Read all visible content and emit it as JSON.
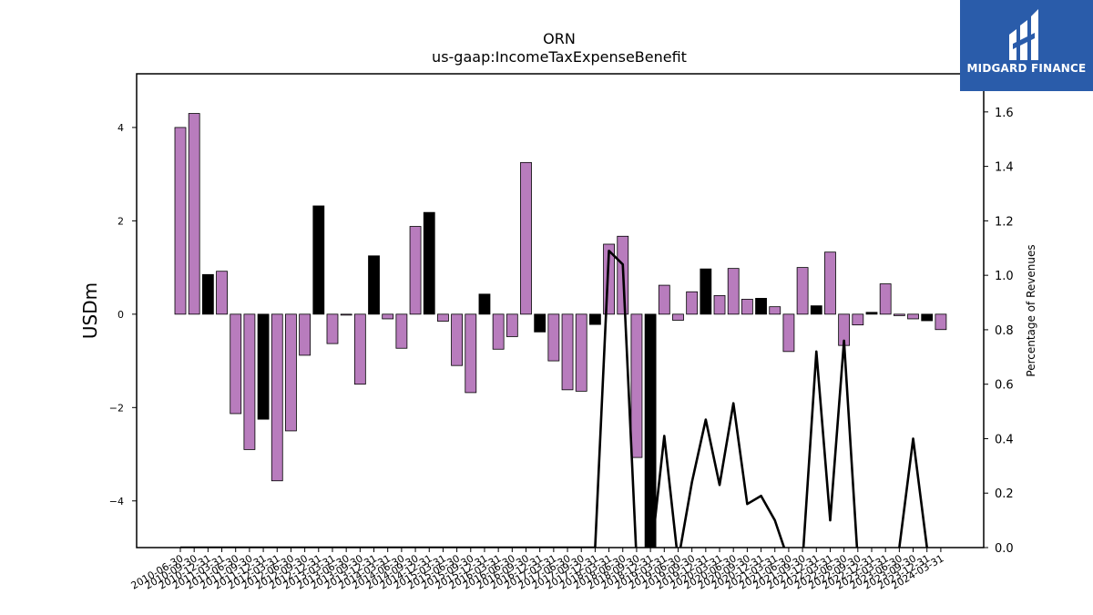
{
  "chart_data": {
    "type": "bar",
    "title": "ORN",
    "subtitle": "us-gaap:IncomeTaxExpenseBenefit",
    "ylabel": "USDm",
    "y2label": "Percentage of Revenues",
    "ylim": [
      -5.0,
      5.15
    ],
    "y2lim": [
      0.0,
      1.74
    ],
    "yticks": [
      -4,
      -2,
      0,
      2,
      4
    ],
    "y2ticks": [
      0.0,
      0.2,
      0.4,
      0.6,
      0.8,
      1.0,
      1.2,
      1.4,
      1.6
    ],
    "colors": {
      "positive_quarter": "#b87cbd",
      "annual": "#000000",
      "line": "#000000"
    },
    "categories": [
      "2010-06-30",
      "2010-09-30",
      "2010-12-31",
      "2011-03-31",
      "2011-06-30",
      "2011-09-30",
      "2011-12-31",
      "2012-03-31",
      "2012-06-30",
      "2012-09-30",
      "2012-12-31",
      "2013-03-31",
      "2013-06-30",
      "2013-09-30",
      "2013-12-31",
      "2014-03-31",
      "2014-06-30",
      "2014-09-30",
      "2014-12-31",
      "2015-03-31",
      "2015-06-30",
      "2015-09-30",
      "2015-12-31",
      "2016-03-31",
      "2016-06-30",
      "2016-09-30",
      "2016-12-31",
      "2017-03-31",
      "2017-06-30",
      "2017-09-30",
      "2017-12-31",
      "2018-03-31",
      "2018-06-30",
      "2018-09-30",
      "2018-12-31",
      "2019-03-31",
      "2019-06-30",
      "2019-09-30",
      "2019-12-31",
      "2020-03-31",
      "2020-06-30",
      "2020-09-30",
      "2020-12-31",
      "2021-03-31",
      "2021-06-30",
      "2021-09-30",
      "2021-12-31",
      "2022-03-31",
      "2022-06-30",
      "2022-09-30",
      "2022-12-31",
      "2023-03-31",
      "2023-06-30",
      "2023-09-30",
      "2023-12-31",
      "2024-03-31"
    ],
    "x_tick_labels": [
      "2010-06-30",
      "2010-09-30",
      "2010-12-31",
      "2011-03-31",
      "2011-06-30",
      "2011-09-30",
      "2011-12-31",
      "2012-03-31",
      "2012-06-30",
      "2012-09-30",
      "2012-12-31",
      "2013-03-31",
      "2013-06-30",
      "2013-09-30",
      "2013-12-31",
      "2014-03-31",
      "2014-06-30",
      "2014-09-30",
      "2014-12-31",
      "2015-03-31",
      "2015-06-30",
      "2015-09-30",
      "2015-12-31",
      "2016-03-31",
      "2016-06-30",
      "2016-09-30",
      "2016-12-31",
      "2017-03-31",
      "2017-06-30",
      "2017-09-30",
      "2017-12-31",
      "2018-03-31",
      "2018-06-30",
      "2018-09-30",
      "2018-12-31",
      "2019-03-31",
      "2019-06-30",
      "2019-09-30",
      "2019-12-31",
      "2020-03-31",
      "2020-06-30",
      "2020-09-30",
      "2020-12-31",
      "2021-03-31",
      "2021-06-30",
      "2021-09-30",
      "2021-12-31",
      "2022-03-31",
      "2022-06-30",
      "2022-09-30",
      "2022-12-31",
      "2023-03-31",
      "2023-06-30",
      "2023-09-30",
      "2023-12-31",
      "2024-03-31"
    ],
    "series": [
      {
        "kind": "bar",
        "values": [
          4.0,
          4.3,
          0.85,
          0.92,
          -2.13,
          -2.9,
          -2.25,
          -3.57,
          -2.5,
          -0.88,
          2.32,
          -0.63,
          -0.02,
          -1.5,
          1.25,
          -0.1,
          -0.73,
          1.88,
          2.18,
          -0.15,
          -1.1,
          -1.68,
          0.43,
          -0.75,
          -0.48,
          3.25,
          -0.38,
          -1.0,
          -1.62,
          -1.65,
          -0.22,
          1.5,
          1.67,
          -3.07,
          -5.0,
          0.62,
          -0.13,
          0.48,
          0.97,
          0.4,
          0.98,
          0.32,
          0.34,
          0.16,
          -0.8,
          1.0,
          0.18,
          1.33,
          -0.67,
          -0.23,
          0.04,
          0.65,
          -0.03,
          -0.1,
          -0.14,
          -0.33
        ],
        "annual": [
          false,
          false,
          true,
          false,
          false,
          false,
          true,
          false,
          false,
          false,
          true,
          false,
          false,
          false,
          true,
          false,
          false,
          false,
          true,
          false,
          false,
          false,
          true,
          false,
          false,
          false,
          true,
          false,
          false,
          false,
          true,
          false,
          false,
          false,
          true,
          false,
          false,
          false,
          true,
          false,
          false,
          false,
          true,
          false,
          false,
          false,
          true,
          false,
          false,
          false,
          true,
          false,
          false,
          false,
          true,
          false
        ]
      },
      {
        "kind": "line",
        "axis": "right",
        "values": [
          0,
          0,
          0,
          0,
          0,
          0,
          0,
          0,
          0,
          0,
          0,
          0,
          0,
          0,
          0,
          0,
          0,
          0,
          0,
          0,
          0,
          0,
          0,
          0,
          0,
          0,
          0,
          0,
          0,
          0,
          0,
          1.09,
          1.04,
          -0.05,
          -0.05,
          0.41,
          -0.05,
          0.24,
          0.47,
          0.23,
          0.53,
          0.16,
          0.19,
          0.1,
          -0.05,
          -0.05,
          0.72,
          0.1,
          0.76,
          -0.05,
          -0.05,
          -0.05,
          0.0,
          0.4,
          0.0,
          null
        ]
      }
    ]
  },
  "logo": {
    "text": "MIDGARD FINANCE"
  }
}
